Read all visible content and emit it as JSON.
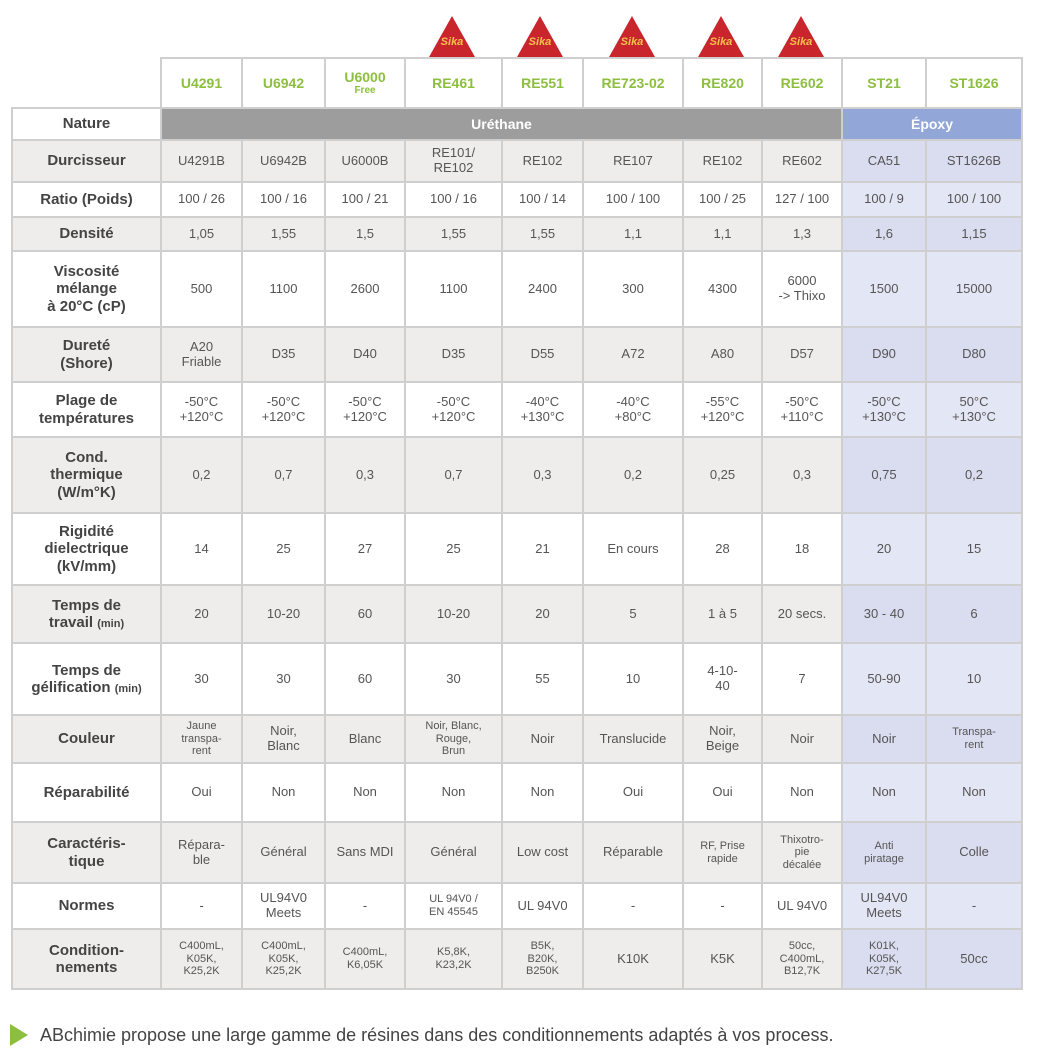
{
  "logo_text": "Sika",
  "products": [
    {
      "name": "U4291",
      "sub": ""
    },
    {
      "name": "U6942",
      "sub": ""
    },
    {
      "name": "U6000",
      "sub": "Free"
    },
    {
      "name": "RE461",
      "sub": ""
    },
    {
      "name": "RE551",
      "sub": ""
    },
    {
      "name": "RE723-02",
      "sub": ""
    },
    {
      "name": "RE820",
      "sub": ""
    },
    {
      "name": "RE602",
      "sub": ""
    },
    {
      "name": "ST21",
      "sub": ""
    },
    {
      "name": "ST1626",
      "sub": ""
    }
  ],
  "nature": {
    "label": "Nature",
    "urethane": "Uréthane",
    "epoxy": "Époxy"
  },
  "rows": [
    {
      "label": "Durcisseur",
      "values": [
        "U4291B",
        "U6942B",
        "U6000B",
        "RE101/\nRE102",
        "RE102",
        "RE107",
        "RE102",
        "RE602",
        "CA51",
        "ST1626B"
      ]
    },
    {
      "label": "Ratio (Poids)",
      "values": [
        "100 / 26",
        "100 / 16",
        "100 / 21",
        "100 / 16",
        "100 / 14",
        "100 / 100",
        "100 / 25",
        "127 / 100",
        "100 / 9",
        "100 / 100"
      ]
    },
    {
      "label": "Densité",
      "values": [
        "1,05",
        "1,55",
        "1,5",
        "1,55",
        "1,55",
        "1,1",
        "1,1",
        "1,3",
        "1,6",
        "1,15"
      ]
    },
    {
      "label": "Viscosité\nmélange\nà 20°C (cP)",
      "values": [
        "500",
        "1100",
        "2600",
        "1100",
        "2400",
        "300",
        "4300",
        "6000\n-> Thixo",
        "1500",
        "15000"
      ]
    },
    {
      "label": "Dureté\n(Shore)",
      "values": [
        "A20\nFriable",
        "D35",
        "D40",
        "D35",
        "D55",
        "A72",
        "A80",
        "D57",
        "D90",
        "D80"
      ]
    },
    {
      "label": "Plage de\ntempératures",
      "values": [
        "-50°C\n+120°C",
        "-50°C\n+120°C",
        "-50°C\n+120°C",
        "-50°C\n+120°C",
        "-40°C\n+130°C",
        "-40°C\n+80°C",
        "-55°C\n+120°C",
        "-50°C\n+110°C",
        "-50°C\n+130°C",
        "50°C\n+130°C"
      ]
    },
    {
      "label": "Cond.\nthermique\n(W/m°K)",
      "values": [
        "0,2",
        "0,7",
        "0,3",
        "0,7",
        "0,3",
        "0,2",
        "0,25",
        "0,3",
        "0,75",
        "0,2"
      ]
    },
    {
      "label": "Rigidité\ndielectrique\n(kV/mm)",
      "values": [
        "14",
        "25",
        "27",
        "25",
        "21",
        "En cours",
        "28",
        "18",
        "20",
        "15"
      ]
    },
    {
      "label": "Temps de\ntravail",
      "unit": "(min)",
      "values": [
        "20",
        "10-20",
        "60",
        "10-20",
        "20",
        "5",
        "1 à 5",
        "20 secs.",
        "30 - 40",
        "6"
      ]
    },
    {
      "label": "Temps de\ngélification",
      "unit": "(min)",
      "values": [
        "30",
        "30",
        "60",
        "30",
        "55",
        "10",
        "4-10-\n40",
        "7",
        "50-90",
        "10"
      ]
    },
    {
      "label": "Couleur",
      "values": [
        "Jaune\ntranspa-\nrent",
        "Noir,\nBlanc",
        "Blanc",
        "Noir, Blanc,\nRouge,\nBrun",
        "Noir",
        "Translucide",
        "Noir,\nBeige",
        "Noir",
        "Noir",
        "Transpa-\nrent"
      ]
    },
    {
      "label": "Réparabilité",
      "values": [
        "Oui",
        "Non",
        "Non",
        "Non",
        "Non",
        "Oui",
        "Oui",
        "Non",
        "Non",
        "Non"
      ]
    },
    {
      "label": "Caractéris-\ntique",
      "values": [
        "Répara-\nble",
        "Général",
        "Sans MDI",
        "Général",
        "Low cost",
        "Réparable",
        "RF, Prise\nrapide",
        "Thixotro-\npie\ndécalée",
        "Anti\npiratage",
        "Colle"
      ]
    },
    {
      "label": "Normes",
      "values": [
        "-",
        "UL94V0\nMeets",
        "-",
        "UL 94V0 /\nEN 45545",
        "UL 94V0",
        "-",
        "-",
        "UL 94V0",
        "UL94V0\nMeets",
        "-"
      ]
    },
    {
      "label": "Condition-\nnements",
      "values": [
        "C400mL,\nK05K,\nK25,2K",
        "C400mL,\nK05K,\nK25,2K",
        "C400mL,\nK6,05K",
        "K5,8K,\nK23,2K",
        "B5K,\nB20K,\nB250K",
        "K10K",
        "K5K",
        "50cc,\nC400mL,\nB12,7K",
        "K01K,\nK05K,\nK27,5K",
        "50cc"
      ]
    }
  ],
  "footer": "ABchimie propose une large gamme de résines dans des conditionnements adaptés à vos process."
}
